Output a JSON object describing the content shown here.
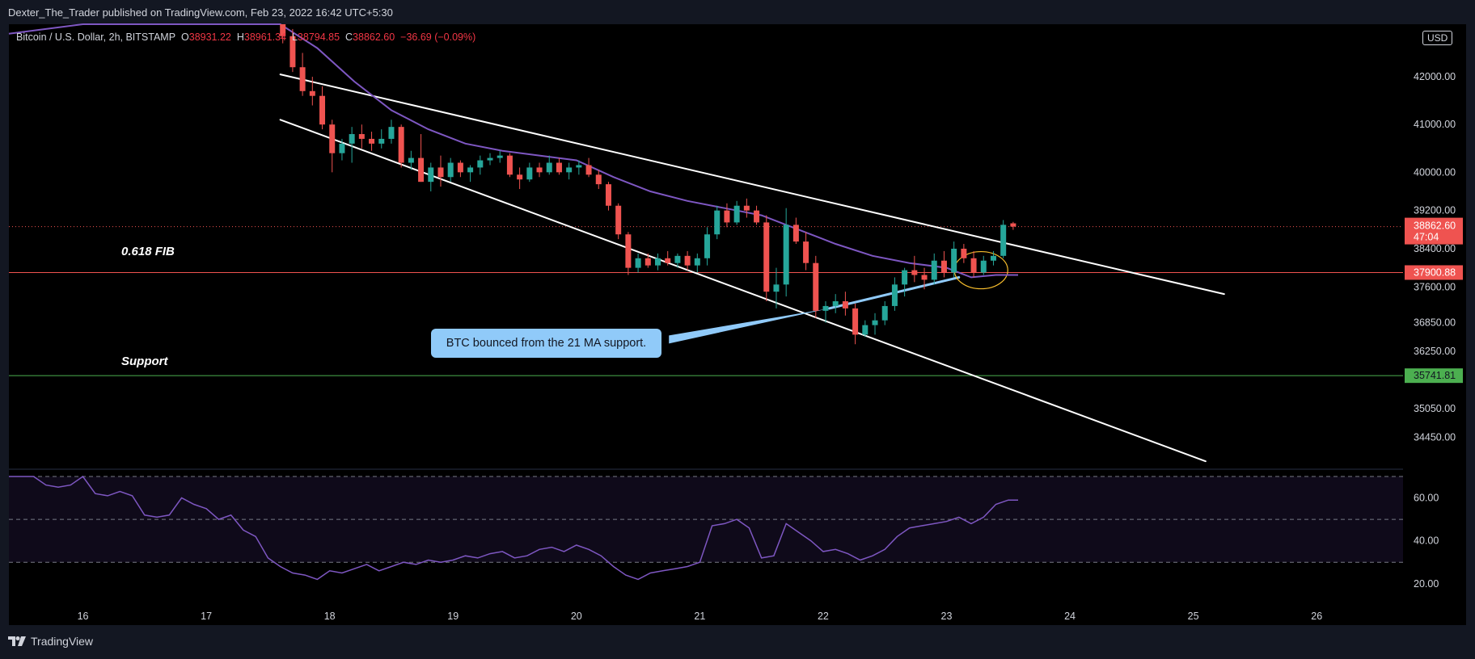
{
  "header": {
    "published": "Dexter_The_Trader published on TradingView.com, Feb 23, 2022 16:42 UTC+5:30"
  },
  "footer": {
    "brand": "TradingView"
  },
  "symbol": {
    "name": "Bitcoin / U.S. Dollar, 2h, BITSTAMP",
    "o_label": "O",
    "o_value": "38931.22",
    "h_label": "H",
    "h_value": "38961.34",
    "l_label": "L",
    "l_value": "38794.85",
    "c_label": "C",
    "c_value": "38862.60",
    "change": "−36.69 (−0.09%)"
  },
  "currency": "USD",
  "annotations": {
    "fib_label": "0.618 FIB",
    "support_label": "Support",
    "callout": "BTC bounced from the 21 MA support."
  },
  "price_badges": {
    "last": "38862.60",
    "countdown": "47:04",
    "fib": "37900.88",
    "support": "35741.81"
  },
  "colors": {
    "up": "#26a69a",
    "down": "#ef5350",
    "ma": "#7e57c2",
    "rsi": "#7e57c2",
    "fib_line": "#ef5350",
    "support_line": "#4caf50",
    "channel": "#ffffff",
    "callout": "#90caf9",
    "ellipse": "#fbc02d"
  },
  "chart_data": {
    "type": "candlestick",
    "x_axis": {
      "ticks": [
        "16",
        "17",
        "18",
        "19",
        "20",
        "21",
        "22",
        "23",
        "24",
        "25",
        "26"
      ],
      "range": [
        15.4,
        26.7
      ]
    },
    "price_axis": {
      "ticks": [
        "42000.00",
        "41000.00",
        "40000.00",
        "39200.00",
        "38400.00",
        "37600.00",
        "36850.00",
        "36250.00",
        "35050.00",
        "34450.00"
      ],
      "tick_values": [
        42000,
        41000,
        40000,
        39200,
        38400,
        37600,
        36850,
        36250,
        35050,
        34450
      ],
      "range": [
        33800,
        43100
      ]
    },
    "candles": [
      {
        "t": 17.62,
        "o": 43100,
        "h": 43300,
        "l": 42700,
        "c": 42850
      },
      {
        "t": 17.7,
        "o": 42850,
        "h": 43000,
        "l": 42100,
        "c": 42200
      },
      {
        "t": 17.78,
        "o": 42200,
        "h": 42500,
        "l": 41600,
        "c": 41700
      },
      {
        "t": 17.86,
        "o": 41700,
        "h": 42000,
        "l": 41400,
        "c": 41600
      },
      {
        "t": 17.94,
        "o": 41600,
        "h": 41800,
        "l": 40900,
        "c": 41000
      },
      {
        "t": 18.02,
        "o": 41000,
        "h": 41100,
        "l": 40000,
        "c": 40400
      },
      {
        "t": 18.1,
        "o": 40400,
        "h": 40700,
        "l": 40250,
        "c": 40600
      },
      {
        "t": 18.18,
        "o": 40600,
        "h": 40950,
        "l": 40200,
        "c": 40800
      },
      {
        "t": 18.26,
        "o": 40800,
        "h": 41000,
        "l": 40500,
        "c": 40700
      },
      {
        "t": 18.34,
        "o": 40700,
        "h": 40850,
        "l": 40450,
        "c": 40600
      },
      {
        "t": 18.42,
        "o": 40600,
        "h": 40900,
        "l": 40500,
        "c": 40700
      },
      {
        "t": 18.5,
        "o": 40700,
        "h": 41100,
        "l": 40600,
        "c": 40950
      },
      {
        "t": 18.58,
        "o": 40950,
        "h": 41000,
        "l": 40100,
        "c": 40200
      },
      {
        "t": 18.66,
        "o": 40200,
        "h": 40450,
        "l": 40050,
        "c": 40300
      },
      {
        "t": 18.74,
        "o": 40300,
        "h": 40800,
        "l": 39800,
        "c": 39800
      },
      {
        "t": 18.82,
        "o": 39800,
        "h": 40200,
        "l": 39600,
        "c": 40100
      },
      {
        "t": 18.9,
        "o": 40100,
        "h": 40350,
        "l": 39700,
        "c": 39900
      },
      {
        "t": 18.98,
        "o": 39900,
        "h": 40300,
        "l": 39800,
        "c": 40200
      },
      {
        "t": 19.06,
        "o": 40200,
        "h": 40250,
        "l": 39900,
        "c": 40000
      },
      {
        "t": 19.14,
        "o": 40000,
        "h": 40150,
        "l": 39800,
        "c": 40100
      },
      {
        "t": 19.22,
        "o": 40100,
        "h": 40350,
        "l": 39950,
        "c": 40250
      },
      {
        "t": 19.3,
        "o": 40250,
        "h": 40400,
        "l": 40150,
        "c": 40300
      },
      {
        "t": 19.38,
        "o": 40300,
        "h": 40450,
        "l": 40200,
        "c": 40350
      },
      {
        "t": 19.46,
        "o": 40350,
        "h": 40400,
        "l": 39900,
        "c": 39950
      },
      {
        "t": 19.54,
        "o": 39950,
        "h": 40100,
        "l": 39650,
        "c": 39850
      },
      {
        "t": 19.62,
        "o": 39850,
        "h": 40200,
        "l": 39800,
        "c": 40100
      },
      {
        "t": 19.7,
        "o": 40100,
        "h": 40200,
        "l": 39900,
        "c": 40000
      },
      {
        "t": 19.78,
        "o": 40000,
        "h": 40350,
        "l": 39950,
        "c": 40200
      },
      {
        "t": 19.86,
        "o": 40200,
        "h": 40300,
        "l": 39950,
        "c": 40000
      },
      {
        "t": 19.94,
        "o": 40000,
        "h": 40200,
        "l": 39850,
        "c": 40100
      },
      {
        "t": 20.02,
        "o": 40100,
        "h": 40250,
        "l": 39950,
        "c": 40150
      },
      {
        "t": 20.1,
        "o": 40150,
        "h": 40300,
        "l": 39900,
        "c": 39950
      },
      {
        "t": 20.18,
        "o": 39950,
        "h": 40050,
        "l": 39650,
        "c": 39750
      },
      {
        "t": 20.26,
        "o": 39750,
        "h": 39800,
        "l": 39200,
        "c": 39300
      },
      {
        "t": 20.34,
        "o": 39300,
        "h": 39350,
        "l": 38600,
        "c": 38700
      },
      {
        "t": 20.42,
        "o": 38700,
        "h": 38750,
        "l": 37850,
        "c": 38000
      },
      {
        "t": 20.5,
        "o": 38000,
        "h": 38300,
        "l": 37900,
        "c": 38200
      },
      {
        "t": 20.58,
        "o": 38200,
        "h": 38300,
        "l": 38000,
        "c": 38050
      },
      {
        "t": 20.66,
        "o": 38050,
        "h": 38300,
        "l": 37950,
        "c": 38200
      },
      {
        "t": 20.74,
        "o": 38200,
        "h": 38350,
        "l": 38050,
        "c": 38100
      },
      {
        "t": 20.82,
        "o": 38100,
        "h": 38300,
        "l": 38000,
        "c": 38250
      },
      {
        "t": 20.9,
        "o": 38250,
        "h": 38350,
        "l": 37950,
        "c": 38050
      },
      {
        "t": 20.98,
        "o": 38050,
        "h": 38300,
        "l": 37900,
        "c": 38200
      },
      {
        "t": 21.06,
        "o": 38200,
        "h": 38850,
        "l": 38050,
        "c": 38700
      },
      {
        "t": 21.14,
        "o": 38700,
        "h": 39300,
        "l": 38600,
        "c": 39200
      },
      {
        "t": 21.22,
        "o": 39200,
        "h": 39350,
        "l": 38850,
        "c": 38950
      },
      {
        "t": 21.3,
        "o": 38950,
        "h": 39400,
        "l": 38900,
        "c": 39300
      },
      {
        "t": 21.38,
        "o": 39300,
        "h": 39450,
        "l": 39050,
        "c": 39200
      },
      {
        "t": 21.46,
        "o": 39200,
        "h": 39300,
        "l": 38900,
        "c": 38950
      },
      {
        "t": 21.54,
        "o": 38950,
        "h": 39100,
        "l": 37300,
        "c": 37500
      },
      {
        "t": 21.62,
        "o": 37500,
        "h": 38000,
        "l": 37150,
        "c": 37650
      },
      {
        "t": 21.7,
        "o": 37650,
        "h": 39250,
        "l": 37400,
        "c": 38900
      },
      {
        "t": 21.78,
        "o": 38900,
        "h": 39050,
        "l": 38500,
        "c": 38550
      },
      {
        "t": 21.86,
        "o": 38550,
        "h": 38750,
        "l": 37950,
        "c": 38100
      },
      {
        "t": 21.94,
        "o": 38100,
        "h": 38250,
        "l": 36950,
        "c": 37100
      },
      {
        "t": 22.02,
        "o": 37100,
        "h": 37300,
        "l": 36850,
        "c": 37200
      },
      {
        "t": 22.1,
        "o": 37200,
        "h": 37450,
        "l": 37050,
        "c": 37300
      },
      {
        "t": 22.18,
        "o": 37300,
        "h": 37500,
        "l": 37000,
        "c": 37150
      },
      {
        "t": 22.26,
        "o": 37150,
        "h": 37250,
        "l": 36400,
        "c": 36600
      },
      {
        "t": 22.34,
        "o": 36600,
        "h": 36900,
        "l": 36550,
        "c": 36800
      },
      {
        "t": 22.42,
        "o": 36800,
        "h": 37050,
        "l": 36600,
        "c": 36900
      },
      {
        "t": 22.5,
        "o": 36900,
        "h": 37300,
        "l": 36800,
        "c": 37200
      },
      {
        "t": 22.58,
        "o": 37200,
        "h": 37800,
        "l": 37100,
        "c": 37650
      },
      {
        "t": 22.66,
        "o": 37650,
        "h": 38000,
        "l": 37400,
        "c": 37950
      },
      {
        "t": 22.74,
        "o": 37950,
        "h": 38250,
        "l": 37700,
        "c": 37850
      },
      {
        "t": 22.82,
        "o": 37850,
        "h": 38000,
        "l": 37550,
        "c": 37750
      },
      {
        "t": 22.9,
        "o": 37750,
        "h": 38300,
        "l": 37650,
        "c": 38150
      },
      {
        "t": 22.98,
        "o": 38150,
        "h": 38350,
        "l": 37800,
        "c": 37900
      },
      {
        "t": 23.06,
        "o": 37900,
        "h": 38550,
        "l": 37800,
        "c": 38400
      },
      {
        "t": 23.14,
        "o": 38400,
        "h": 38500,
        "l": 38100,
        "c": 38200
      },
      {
        "t": 23.22,
        "o": 38200,
        "h": 38350,
        "l": 37800,
        "c": 37900
      },
      {
        "t": 23.3,
        "o": 37900,
        "h": 38250,
        "l": 37850,
        "c": 38150
      },
      {
        "t": 23.38,
        "o": 38150,
        "h": 38350,
        "l": 38050,
        "c": 38250
      },
      {
        "t": 23.46,
        "o": 38250,
        "h": 39000,
        "l": 38200,
        "c": 38900
      },
      {
        "t": 23.54,
        "o": 38931.22,
        "h": 38961.34,
        "l": 38794.85,
        "c": 38862.6
      }
    ],
    "ma_21": {
      "points": [
        [
          15.4,
          42900
        ],
        [
          16.0,
          43250
        ],
        [
          16.6,
          43500
        ],
        [
          17.2,
          43550
        ],
        [
          17.6,
          43300
        ],
        [
          17.9,
          42600
        ],
        [
          18.2,
          41900
        ],
        [
          18.5,
          41300
        ],
        [
          18.8,
          40900
        ],
        [
          19.1,
          40600
        ],
        [
          19.4,
          40450
        ],
        [
          19.7,
          40350
        ],
        [
          20.0,
          40250
        ],
        [
          20.3,
          39900
        ],
        [
          20.6,
          39600
        ],
        [
          20.9,
          39400
        ],
        [
          21.2,
          39250
        ],
        [
          21.5,
          39100
        ],
        [
          21.8,
          38800
        ],
        [
          22.1,
          38500
        ],
        [
          22.4,
          38250
        ],
        [
          22.7,
          38100
        ],
        [
          23.0,
          38000
        ],
        [
          23.2,
          37800
        ],
        [
          23.4,
          37850
        ],
        [
          23.58,
          37850
        ]
      ]
    },
    "channel_upper": {
      "from": [
        17.6,
        42050
      ],
      "to": [
        25.25,
        37450
      ]
    },
    "channel_lower": {
      "from": [
        17.6,
        41100
      ],
      "to": [
        25.1,
        33950
      ]
    },
    "support_21ma_line": {
      "from": [
        22.05,
        37150
      ],
      "to": [
        23.1,
        37800
      ]
    },
    "callout_pointer": {
      "from": [
        20.75,
        36500
      ],
      "to": [
        22.05,
        37150
      ]
    },
    "ellipse_center": [
      23.28,
      37950
    ],
    "levels": {
      "fib": 37900.88,
      "support": 35741.81,
      "last": 38862.6
    },
    "rsi": {
      "axis_ticks": [
        "60.00",
        "40.00",
        "20.00"
      ],
      "tick_values": [
        60,
        40,
        20
      ],
      "range": [
        12,
        73
      ],
      "bands": [
        70,
        50,
        30
      ],
      "values": [
        [
          15.4,
          70
        ],
        [
          15.6,
          70
        ],
        [
          15.7,
          66
        ],
        [
          15.8,
          65
        ],
        [
          15.9,
          66
        ],
        [
          16.0,
          70
        ],
        [
          16.1,
          62
        ],
        [
          16.2,
          61
        ],
        [
          16.3,
          63
        ],
        [
          16.4,
          61
        ],
        [
          16.5,
          52
        ],
        [
          16.6,
          51
        ],
        [
          16.7,
          52
        ],
        [
          16.8,
          60
        ],
        [
          16.9,
          57
        ],
        [
          17.0,
          55
        ],
        [
          17.1,
          50
        ],
        [
          17.2,
          52
        ],
        [
          17.3,
          45
        ],
        [
          17.4,
          42
        ],
        [
          17.5,
          32
        ],
        [
          17.6,
          28
        ],
        [
          17.7,
          25
        ],
        [
          17.8,
          24
        ],
        [
          17.9,
          22
        ],
        [
          18.0,
          26
        ],
        [
          18.1,
          25
        ],
        [
          18.2,
          27
        ],
        [
          18.3,
          29
        ],
        [
          18.4,
          26
        ],
        [
          18.5,
          28
        ],
        [
          18.6,
          30
        ],
        [
          18.7,
          29
        ],
        [
          18.8,
          31
        ],
        [
          18.9,
          30
        ],
        [
          19.0,
          31
        ],
        [
          19.1,
          33
        ],
        [
          19.2,
          32
        ],
        [
          19.3,
          34
        ],
        [
          19.4,
          35
        ],
        [
          19.5,
          32
        ],
        [
          19.6,
          33
        ],
        [
          19.7,
          36
        ],
        [
          19.8,
          37
        ],
        [
          19.9,
          35
        ],
        [
          20.0,
          38
        ],
        [
          20.1,
          36
        ],
        [
          20.2,
          33
        ],
        [
          20.3,
          28
        ],
        [
          20.4,
          24
        ],
        [
          20.5,
          22
        ],
        [
          20.6,
          25
        ],
        [
          20.7,
          26
        ],
        [
          20.8,
          27
        ],
        [
          20.9,
          28
        ],
        [
          21.0,
          30
        ],
        [
          21.1,
          47
        ],
        [
          21.2,
          48
        ],
        [
          21.3,
          50
        ],
        [
          21.4,
          46
        ],
        [
          21.5,
          32
        ],
        [
          21.6,
          33
        ],
        [
          21.7,
          48
        ],
        [
          21.8,
          44
        ],
        [
          21.9,
          40
        ],
        [
          22.0,
          35
        ],
        [
          22.1,
          36
        ],
        [
          22.2,
          34
        ],
        [
          22.3,
          31
        ],
        [
          22.4,
          33
        ],
        [
          22.5,
          36
        ],
        [
          22.6,
          42
        ],
        [
          22.7,
          46
        ],
        [
          22.8,
          47
        ],
        [
          22.9,
          48
        ],
        [
          23.0,
          49
        ],
        [
          23.1,
          51
        ],
        [
          23.2,
          48
        ],
        [
          23.3,
          51
        ],
        [
          23.4,
          57
        ],
        [
          23.5,
          59
        ],
        [
          23.58,
          59
        ]
      ]
    }
  }
}
